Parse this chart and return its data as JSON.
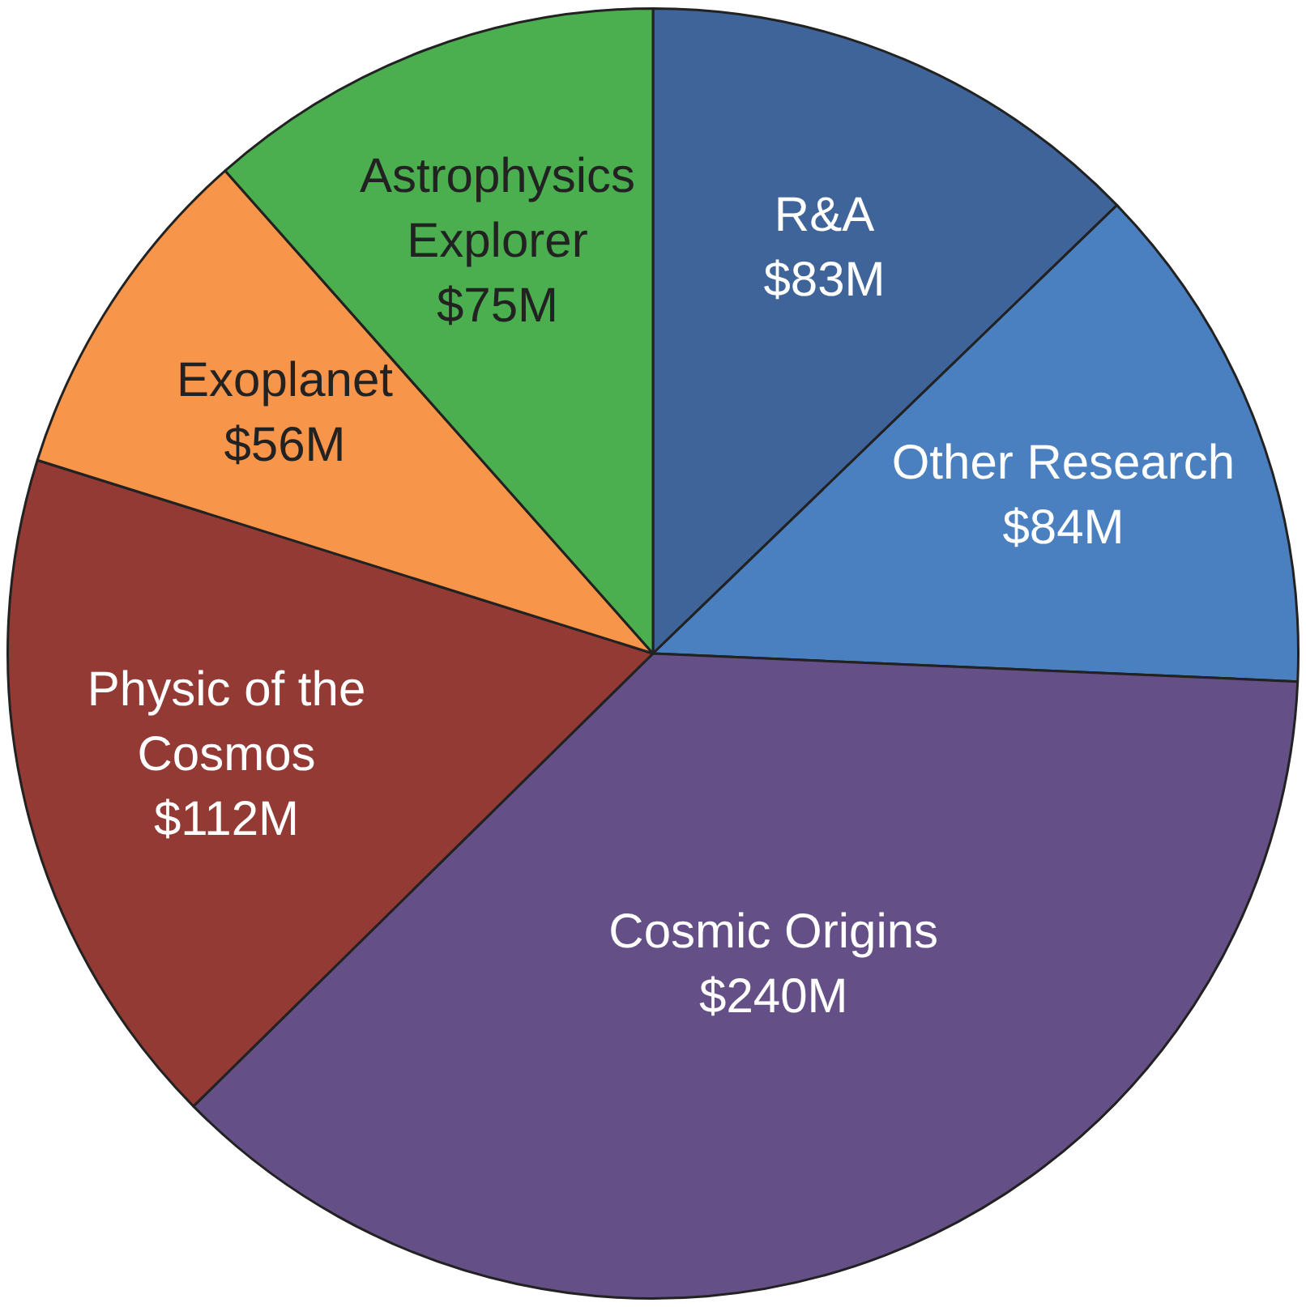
{
  "chart_data": {
    "type": "pie",
    "categories": [
      "R&A",
      "Other Research",
      "Cosmic Origins",
      "Physic of the Cosmos",
      "Exoplanet",
      "Astrophysics Explorer"
    ],
    "values": [
      83,
      84,
      240,
      112,
      56,
      75
    ],
    "colors": [
      "#3f6499",
      "#4a7fc0",
      "#654f87",
      "#923a33",
      "#f7954a",
      "#4bae4f"
    ],
    "value_labels": [
      "$83M",
      "$84M",
      "$240M",
      "$112M",
      "$56M",
      "$75M"
    ],
    "legend": false
  }
}
